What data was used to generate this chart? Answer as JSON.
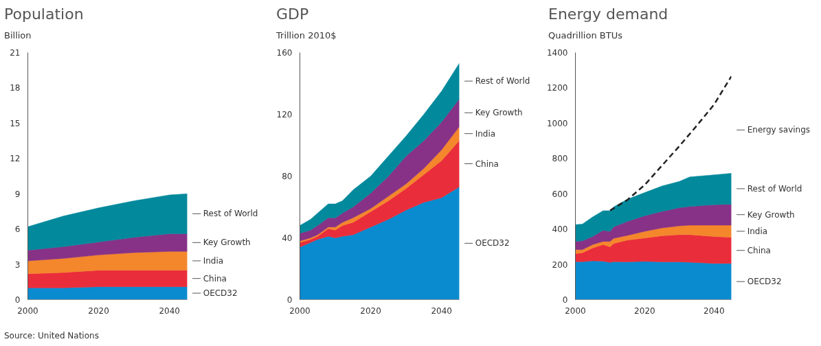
{
  "chart_data": [
    {
      "type": "area",
      "stacked": true,
      "title": "Population",
      "subtitle": "Billion",
      "annotations": [
        "Source: United Nations"
      ],
      "x": [
        2000,
        2010,
        2020,
        2030,
        2040,
        2045
      ],
      "xlim": [
        2000,
        2045
      ],
      "xticks": [
        2000,
        2020,
        2040
      ],
      "ylim": [
        0,
        21
      ],
      "yticks": [
        0,
        3,
        6,
        9,
        12,
        15,
        18,
        21
      ],
      "grid": false,
      "series": [
        {
          "name": "OECD32",
          "color": "#0a8bd0",
          "values": [
            1.0,
            1.0,
            1.1,
            1.1,
            1.1,
            1.1
          ]
        },
        {
          "name": "China",
          "color": "#ea2d3a",
          "values": [
            1.2,
            1.3,
            1.4,
            1.4,
            1.4,
            1.4
          ]
        },
        {
          "name": "India",
          "color": "#f4862c",
          "values": [
            1.1,
            1.2,
            1.3,
            1.5,
            1.6,
            1.6
          ]
        },
        {
          "name": "Key Growth",
          "color": "#873286",
          "values": [
            0.9,
            1.0,
            1.1,
            1.3,
            1.5,
            1.5
          ]
        },
        {
          "name": "Rest of World",
          "color": "#03899c",
          "values": [
            2.0,
            2.6,
            2.9,
            3.1,
            3.3,
            3.4
          ]
        }
      ]
    },
    {
      "type": "area",
      "stacked": true,
      "title": "GDP",
      "subtitle": "Trillion 2010$",
      "x": [
        2000,
        2003,
        2005,
        2008,
        2010,
        2012,
        2015,
        2020,
        2025,
        2030,
        2035,
        2040,
        2045
      ],
      "xlim": [
        2000,
        2045
      ],
      "xticks": [
        2000,
        2020,
        2040
      ],
      "ylim": [
        0,
        160
      ],
      "yticks": [
        0,
        40,
        80,
        120,
        160
      ],
      "grid": false,
      "series": [
        {
          "name": "OECD32",
          "color": "#0a8bd0",
          "values": [
            34,
            37,
            39,
            41,
            40,
            41,
            42,
            47,
            52,
            58,
            63,
            66,
            73
          ]
        },
        {
          "name": "China",
          "color": "#ea2d3a",
          "values": [
            3,
            2,
            2,
            5,
            5,
            7,
            8,
            10,
            12,
            14,
            18,
            24,
            30
          ]
        },
        {
          "name": "India",
          "color": "#f4862c",
          "values": [
            1,
            1,
            1,
            1,
            2,
            2,
            3,
            2,
            3,
            3,
            4,
            7,
            9
          ]
        },
        {
          "name": "Key Growth",
          "color": "#873286",
          "values": [
            5,
            5,
            6,
            6,
            6,
            6,
            7,
            10,
            13,
            18,
            18,
            18,
            18
          ]
        },
        {
          "name": "Rest of World",
          "color": "#03899c",
          "values": [
            5,
            7,
            8,
            9,
            9,
            8,
            11,
            11,
            13,
            13,
            17,
            20,
            23
          ]
        }
      ]
    },
    {
      "type": "area",
      "stacked": true,
      "title": "Energy demand",
      "subtitle": "Quadrillion BTUs",
      "x": [
        2000,
        2002,
        2005,
        2008,
        2010,
        2011,
        2015,
        2020,
        2025,
        2030,
        2033,
        2040,
        2045
      ],
      "xlim": [
        2000,
        2045
      ],
      "xticks": [
        2000,
        2020,
        2040
      ],
      "ylim": [
        0,
        1400
      ],
      "yticks": [
        0,
        200,
        400,
        600,
        800,
        1000,
        1200,
        1400
      ],
      "grid": false,
      "series": [
        {
          "name": "OECD32",
          "color": "#0a8bd0",
          "values": [
            215,
            215,
            220,
            218,
            211,
            215,
            214,
            217,
            214,
            214,
            212,
            205,
            205
          ]
        },
        {
          "name": "China",
          "color": "#ea2d3a",
          "values": [
            46,
            50,
            73,
            94,
            88,
            103,
            123,
            132,
            148,
            154,
            156,
            153,
            148
          ]
        },
        {
          "name": "India",
          "color": "#f4862c",
          "values": [
            23,
            18,
            19,
            18,
            31,
            29,
            27,
            38,
            44,
            50,
            54,
            64,
            69
          ]
        },
        {
          "name": "Key Growth",
          "color": "#873286",
          "values": [
            46,
            50,
            46,
            63,
            57,
            65,
            79,
            88,
            94,
            103,
            106,
            116,
            119
          ]
        },
        {
          "name": "Rest of World",
          "color": "#03899c",
          "values": [
            95,
            95,
            111,
            111,
            117,
            113,
            126,
            132,
            144,
            149,
            167,
            169,
            175
          ]
        },
        {
          "name": "Energy savings",
          "type": "line",
          "line_style": "dashed",
          "color": "#222222",
          "x": [
            2010,
            2015,
            2020,
            2025,
            2030,
            2035,
            2040,
            2045
          ],
          "values": [
            505,
            565,
            650,
            760,
            870,
            985,
            1105,
            1265
          ]
        }
      ]
    }
  ]
}
